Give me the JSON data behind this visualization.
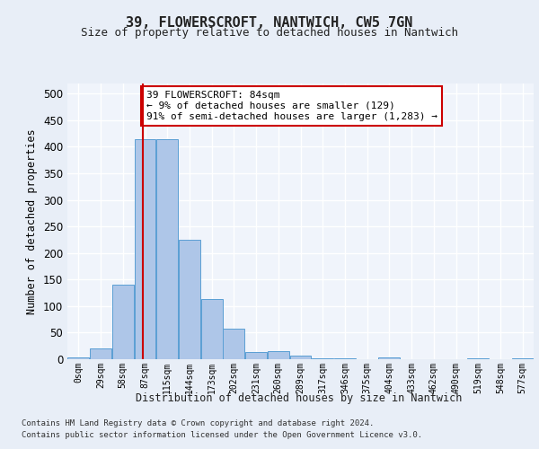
{
  "title1": "39, FLOWERSCROFT, NANTWICH, CW5 7GN",
  "title2": "Size of property relative to detached houses in Nantwich",
  "xlabel": "Distribution of detached houses by size in Nantwich",
  "ylabel": "Number of detached properties",
  "bin_labels": [
    "0sqm",
    "29sqm",
    "58sqm",
    "87sqm",
    "115sqm",
    "144sqm",
    "173sqm",
    "202sqm",
    "231sqm",
    "260sqm",
    "289sqm",
    "317sqm",
    "346sqm",
    "375sqm",
    "404sqm",
    "433sqm",
    "462sqm",
    "490sqm",
    "519sqm",
    "548sqm",
    "577sqm"
  ],
  "bar_values": [
    3,
    20,
    140,
    415,
    415,
    225,
    113,
    57,
    13,
    15,
    6,
    1,
    2,
    0,
    4,
    0,
    0,
    0,
    2,
    0,
    2
  ],
  "bar_color": "#aec6e8",
  "bar_edge_color": "#5a9fd4",
  "vline_x_bin": 2.9,
  "annotation_text": "39 FLOWERSCROFT: 84sqm\n← 9% of detached houses are smaller (129)\n91% of semi-detached houses are larger (1,283) →",
  "annotation_box_color": "#ffffff",
  "annotation_box_edge": "#cc0000",
  "vline_color": "#cc0000",
  "ylim": [
    0,
    520
  ],
  "yticks": [
    0,
    50,
    100,
    150,
    200,
    250,
    300,
    350,
    400,
    450,
    500
  ],
  "footer1": "Contains HM Land Registry data © Crown copyright and database right 2024.",
  "footer2": "Contains public sector information licensed under the Open Government Licence v3.0.",
  "bg_color": "#e8eef7",
  "plot_bg_color": "#f0f4fb"
}
